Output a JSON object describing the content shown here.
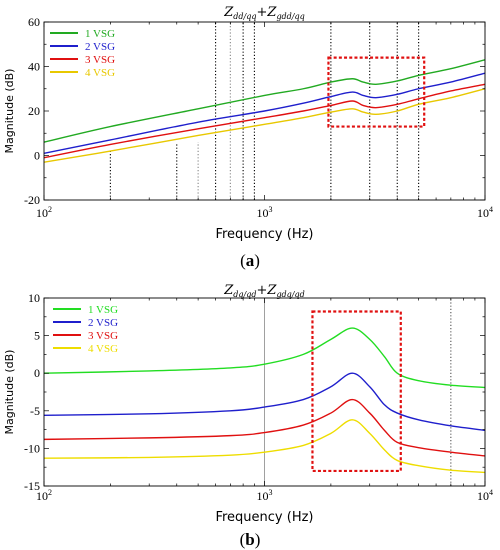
{
  "chart_data": [
    {
      "type": "line",
      "panel_label": "a",
      "title": "Z_dd/qq + Z_gdd/qq",
      "title_parts": {
        "a": "Z",
        "a_sub": "dd/qq",
        "plus": "+",
        "b": "Z",
        "b_sub": "gdd/qq"
      },
      "xlabel": "Frequency  (Hz)",
      "ylabel": "Magnitude (dB)",
      "xscale": "log",
      "xlim": [
        100,
        10000
      ],
      "ylim": [
        -20,
        60
      ],
      "yticks": [
        "-20",
        "0",
        "20",
        "40",
        "60"
      ],
      "xtick_labels": [
        {
          "value": 100,
          "base": "10",
          "exp": "2"
        },
        {
          "value": 1000,
          "base": "10",
          "exp": "3"
        },
        {
          "value": 10000,
          "base": "10",
          "exp": "4"
        }
      ],
      "legend_position": "top-left",
      "series": [
        {
          "name": "1 VSG",
          "color": "#22aa22",
          "x": [
            100,
            200,
            500,
            1000,
            1500,
            2000,
            2500,
            2800,
            3200,
            4000,
            5000,
            7000,
            10000
          ],
          "values": [
            6,
            13,
            21,
            27,
            30,
            33,
            34.5,
            33,
            32,
            33.5,
            36,
            39,
            43
          ]
        },
        {
          "name": "2 VSG",
          "color": "#1f1fcc",
          "x": [
            100,
            200,
            500,
            1000,
            1500,
            2000,
            2500,
            2800,
            3200,
            4000,
            5000,
            7000,
            10000
          ],
          "values": [
            1,
            7,
            15,
            20,
            23.5,
            26.5,
            28.5,
            27,
            26,
            27.5,
            30,
            33,
            37
          ]
        },
        {
          "name": "3 VSG",
          "color": "#e01010",
          "x": [
            100,
            200,
            500,
            1000,
            1500,
            2000,
            2500,
            2800,
            3200,
            4000,
            5000,
            7000,
            10000
          ],
          "values": [
            -1,
            5,
            12,
            17,
            20,
            22.5,
            24.5,
            22.5,
            21.5,
            23,
            25.5,
            29,
            32
          ]
        },
        {
          "name": "4 VSG",
          "color": "#e8c800",
          "x": [
            100,
            200,
            500,
            1000,
            1500,
            2000,
            2500,
            2800,
            3200,
            4000,
            5000,
            7000,
            10000
          ],
          "values": [
            -3,
            2,
            9,
            14,
            17,
            19.5,
            21,
            19.5,
            18.5,
            20,
            23,
            26,
            30
          ]
        }
      ],
      "vlines": [
        {
          "x": 200,
          "y_to": 3
        },
        {
          "x": 400,
          "y_to": 5
        },
        {
          "x": 500,
          "y_to": 6,
          "color": "#888888"
        },
        {
          "x": 600,
          "y_to": 60
        },
        {
          "x": 700,
          "y_to": 60,
          "color": "#888888"
        },
        {
          "x": 800,
          "y_to": 60
        },
        {
          "x": 900,
          "y_to": 60
        },
        {
          "x": 2000,
          "y_to": 60
        },
        {
          "x": 3000,
          "y_to": 60
        },
        {
          "x": 4000,
          "y_to": 60
        },
        {
          "x": 5000,
          "y_to": 60
        }
      ],
      "highlight_box": {
        "x": [
          1950,
          5300
        ],
        "y": [
          13,
          44
        ]
      }
    },
    {
      "type": "line",
      "panel_label": "b",
      "title": "Z_dq/qd + Z_gdq/qd",
      "title_parts": {
        "a": "Z",
        "a_sub": "dq/qd",
        "plus": "+",
        "b": "Z",
        "b_sub": "gdq/qd"
      },
      "xlabel": "Frequency  (Hz)",
      "ylabel": "Magnitude (dB)",
      "xscale": "log",
      "xlim": [
        100,
        10000
      ],
      "ylim": [
        -15,
        10
      ],
      "yticks": [
        "-15",
        "-10",
        "-5",
        "0",
        "5",
        "10"
      ],
      "xtick_labels": [
        {
          "value": 100,
          "base": "10",
          "exp": "2"
        },
        {
          "value": 1000,
          "base": "10",
          "exp": "3"
        },
        {
          "value": 10000,
          "base": "10",
          "exp": "4"
        }
      ],
      "legend_position": "top-left",
      "series": [
        {
          "name": "1 VSG",
          "color": "#22dd22",
          "x": [
            100,
            300,
            700,
            1000,
            1500,
            2000,
            2500,
            3000,
            3500,
            4000,
            5000,
            7000,
            10000
          ],
          "values": [
            0,
            0.3,
            0.7,
            1.2,
            2.5,
            4.5,
            6,
            4.5,
            2.2,
            0,
            -1,
            -1.6,
            -1.9
          ]
        },
        {
          "name": "2 VSG",
          "color": "#1f1fcc",
          "x": [
            100,
            300,
            700,
            1000,
            1500,
            2000,
            2500,
            3000,
            3500,
            4000,
            5000,
            7000,
            10000
          ],
          "values": [
            -5.6,
            -5.4,
            -5.0,
            -4.5,
            -3.5,
            -1.8,
            0,
            -1.8,
            -4.2,
            -5.3,
            -6.2,
            -7.0,
            -7.6
          ]
        },
        {
          "name": "3 VSG",
          "color": "#e01010",
          "x": [
            100,
            300,
            700,
            1000,
            1500,
            2000,
            2500,
            3000,
            3500,
            4000,
            5000,
            7000,
            10000
          ],
          "values": [
            -8.8,
            -8.6,
            -8.3,
            -7.9,
            -6.9,
            -5.3,
            -3.5,
            -5.3,
            -7.6,
            -9.2,
            -9.9,
            -10.5,
            -11
          ]
        },
        {
          "name": "4 VSG",
          "color": "#eedd00",
          "x": [
            100,
            300,
            700,
            1000,
            1500,
            2000,
            2500,
            3000,
            3500,
            4000,
            5000,
            7000,
            10000
          ],
          "values": [
            -11.3,
            -11.2,
            -10.9,
            -10.5,
            -9.6,
            -8.0,
            -6.2,
            -8.0,
            -10.2,
            -11.6,
            -12.3,
            -12.9,
            -13.2
          ]
        }
      ],
      "vlines": [
        {
          "x": 1000,
          "y_to": 10,
          "style": "solid",
          "color": "#888888"
        },
        {
          "x": 7000,
          "y_to": 10,
          "style": "dotted",
          "color": "#555555"
        }
      ],
      "highlight_box": {
        "x": [
          1650,
          4150
        ],
        "y": [
          -13,
          8.2
        ]
      }
    }
  ]
}
